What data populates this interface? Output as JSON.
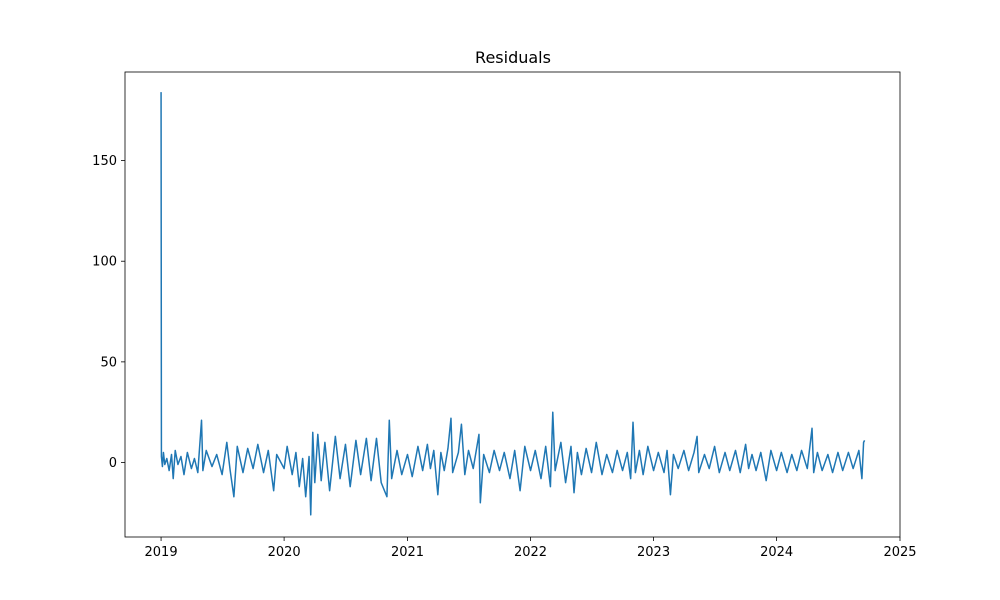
{
  "chart_data": {
    "type": "line",
    "title": "Residuals",
    "xlabel": "",
    "ylabel": "",
    "x_tick_labels": [
      "2019",
      "2020",
      "2021",
      "2022",
      "2023",
      "2024",
      "2025"
    ],
    "y_tick_labels": [
      "0",
      "50",
      "100",
      "150"
    ],
    "y_ticks": [
      0,
      50,
      100,
      150
    ],
    "xlim": [
      "2018-09-16",
      "2025-01-01"
    ],
    "ylim": [
      -37,
      194
    ],
    "grid": false,
    "legend": "none",
    "series": [
      {
        "color": "#1f77b4",
        "points": [
          [
            "2019-01-01",
            184
          ],
          [
            "2019-01-02",
            3
          ],
          [
            "2019-01-05",
            -2
          ],
          [
            "2019-01-08",
            5
          ],
          [
            "2019-01-12",
            -1
          ],
          [
            "2019-01-18",
            2
          ],
          [
            "2019-01-25",
            -4
          ],
          [
            "2019-02-01",
            4
          ],
          [
            "2019-02-06",
            -8
          ],
          [
            "2019-02-12",
            6
          ],
          [
            "2019-02-20",
            -1
          ],
          [
            "2019-03-01",
            3
          ],
          [
            "2019-03-10",
            -6
          ],
          [
            "2019-03-20",
            5
          ],
          [
            "2019-04-01",
            -3
          ],
          [
            "2019-04-10",
            2
          ],
          [
            "2019-04-20",
            -5
          ],
          [
            "2019-05-01",
            21
          ],
          [
            "2019-05-05",
            -4
          ],
          [
            "2019-05-15",
            6
          ],
          [
            "2019-06-01",
            -2
          ],
          [
            "2019-06-15",
            4
          ],
          [
            "2019-07-01",
            -6
          ],
          [
            "2019-07-15",
            10
          ],
          [
            "2019-07-25",
            -4
          ],
          [
            "2019-08-05",
            -17
          ],
          [
            "2019-08-15",
            8
          ],
          [
            "2019-09-01",
            -5
          ],
          [
            "2019-09-15",
            7
          ],
          [
            "2019-10-01",
            -3
          ],
          [
            "2019-10-15",
            9
          ],
          [
            "2019-11-01",
            -5
          ],
          [
            "2019-11-15",
            6
          ],
          [
            "2019-12-01",
            -14
          ],
          [
            "2019-12-10",
            4
          ],
          [
            "2020-01-01",
            -3
          ],
          [
            "2020-01-10",
            8
          ],
          [
            "2020-01-25",
            -6
          ],
          [
            "2020-02-05",
            5
          ],
          [
            "2020-02-15",
            -12
          ],
          [
            "2020-02-25",
            2
          ],
          [
            "2020-03-05",
            -17
          ],
          [
            "2020-03-15",
            3
          ],
          [
            "2020-03-20",
            -26
          ],
          [
            "2020-03-26",
            15
          ],
          [
            "2020-04-01",
            -10
          ],
          [
            "2020-04-10",
            14
          ],
          [
            "2020-04-20",
            -9
          ],
          [
            "2020-05-01",
            10
          ],
          [
            "2020-05-15",
            -14
          ],
          [
            "2020-06-01",
            13
          ],
          [
            "2020-06-15",
            -8
          ],
          [
            "2020-07-01",
            9
          ],
          [
            "2020-07-15",
            -12
          ],
          [
            "2020-08-01",
            11
          ],
          [
            "2020-08-15",
            -6
          ],
          [
            "2020-09-01",
            12
          ],
          [
            "2020-09-15",
            -9
          ],
          [
            "2020-10-01",
            12
          ],
          [
            "2020-10-15",
            -10
          ],
          [
            "2020-11-01",
            -17
          ],
          [
            "2020-11-08",
            21
          ],
          [
            "2020-11-15",
            -8
          ],
          [
            "2020-12-01",
            6
          ],
          [
            "2020-12-15",
            -6
          ],
          [
            "2021-01-01",
            4
          ],
          [
            "2021-01-15",
            -7
          ],
          [
            "2021-02-01",
            8
          ],
          [
            "2021-02-15",
            -4
          ],
          [
            "2021-03-01",
            9
          ],
          [
            "2021-03-10",
            -3
          ],
          [
            "2021-03-20",
            6
          ],
          [
            "2021-04-01",
            -16
          ],
          [
            "2021-04-10",
            5
          ],
          [
            "2021-04-20",
            -4
          ],
          [
            "2021-05-01",
            7
          ],
          [
            "2021-05-10",
            22
          ],
          [
            "2021-05-15",
            -5
          ],
          [
            "2021-06-01",
            5
          ],
          [
            "2021-06-10",
            19
          ],
          [
            "2021-06-20",
            -6
          ],
          [
            "2021-07-01",
            6
          ],
          [
            "2021-07-15",
            -3
          ],
          [
            "2021-08-01",
            14
          ],
          [
            "2021-08-05",
            -20
          ],
          [
            "2021-08-15",
            4
          ],
          [
            "2021-09-01",
            -5
          ],
          [
            "2021-09-15",
            6
          ],
          [
            "2021-10-01",
            -4
          ],
          [
            "2021-10-15",
            5
          ],
          [
            "2021-11-01",
            -8
          ],
          [
            "2021-11-15",
            6
          ],
          [
            "2021-12-01",
            -14
          ],
          [
            "2021-12-15",
            8
          ],
          [
            "2022-01-01",
            -4
          ],
          [
            "2022-01-15",
            6
          ],
          [
            "2022-02-01",
            -8
          ],
          [
            "2022-02-15",
            8
          ],
          [
            "2022-03-01",
            -12
          ],
          [
            "2022-03-08",
            25
          ],
          [
            "2022-03-15",
            -4
          ],
          [
            "2022-04-01",
            10
          ],
          [
            "2022-04-15",
            -10
          ],
          [
            "2022-05-01",
            8
          ],
          [
            "2022-05-10",
            -15
          ],
          [
            "2022-05-20",
            5
          ],
          [
            "2022-06-01",
            -6
          ],
          [
            "2022-06-15",
            7
          ],
          [
            "2022-07-01",
            -5
          ],
          [
            "2022-07-15",
            10
          ],
          [
            "2022-08-01",
            -6
          ],
          [
            "2022-08-15",
            4
          ],
          [
            "2022-09-01",
            -5
          ],
          [
            "2022-09-15",
            6
          ],
          [
            "2022-10-01",
            -4
          ],
          [
            "2022-10-15",
            5
          ],
          [
            "2022-10-25",
            -8
          ],
          [
            "2022-11-01",
            20
          ],
          [
            "2022-11-08",
            -5
          ],
          [
            "2022-11-20",
            6
          ],
          [
            "2022-12-01",
            -6
          ],
          [
            "2022-12-15",
            8
          ],
          [
            "2023-01-01",
            -4
          ],
          [
            "2023-01-15",
            5
          ],
          [
            "2023-02-01",
            -5
          ],
          [
            "2023-02-10",
            6
          ],
          [
            "2023-02-20",
            -16
          ],
          [
            "2023-03-01",
            4
          ],
          [
            "2023-03-15",
            -3
          ],
          [
            "2023-04-01",
            6
          ],
          [
            "2023-04-15",
            -4
          ],
          [
            "2023-05-01",
            5
          ],
          [
            "2023-05-10",
            13
          ],
          [
            "2023-05-15",
            -5
          ],
          [
            "2023-06-01",
            4
          ],
          [
            "2023-06-15",
            -3
          ],
          [
            "2023-07-01",
            8
          ],
          [
            "2023-07-15",
            -5
          ],
          [
            "2023-08-01",
            5
          ],
          [
            "2023-08-15",
            -4
          ],
          [
            "2023-09-01",
            6
          ],
          [
            "2023-09-15",
            -5
          ],
          [
            "2023-10-01",
            9
          ],
          [
            "2023-10-10",
            -3
          ],
          [
            "2023-10-20",
            4
          ],
          [
            "2023-11-01",
            -4
          ],
          [
            "2023-11-15",
            5
          ],
          [
            "2023-12-01",
            -9
          ],
          [
            "2023-12-15",
            6
          ],
          [
            "2024-01-01",
            -4
          ],
          [
            "2024-01-15",
            5
          ],
          [
            "2024-02-01",
            -5
          ],
          [
            "2024-02-15",
            4
          ],
          [
            "2024-03-01",
            -4
          ],
          [
            "2024-03-15",
            6
          ],
          [
            "2024-04-01",
            -3
          ],
          [
            "2024-04-15",
            17
          ],
          [
            "2024-04-20",
            -5
          ],
          [
            "2024-05-01",
            5
          ],
          [
            "2024-05-15",
            -4
          ],
          [
            "2024-06-01",
            4
          ],
          [
            "2024-06-15",
            -5
          ],
          [
            "2024-07-01",
            5
          ],
          [
            "2024-07-15",
            -4
          ],
          [
            "2024-08-01",
            5
          ],
          [
            "2024-08-15",
            -3
          ],
          [
            "2024-09-01",
            6
          ],
          [
            "2024-09-10",
            -8
          ],
          [
            "2024-09-15",
            10
          ],
          [
            "2024-09-18",
            11
          ]
        ]
      }
    ]
  }
}
